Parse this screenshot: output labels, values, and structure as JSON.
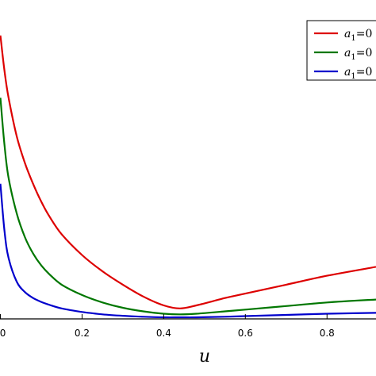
{
  "chart_data": {
    "type": "line",
    "xlabel": "u",
    "ylabel": "",
    "title": "",
    "xlim": [
      0.0,
      0.92
    ],
    "ylim": [
      0.0,
      1.0
    ],
    "x_ticks": [
      "0",
      "0.2",
      "0.4",
      "0.6",
      "0.8"
    ],
    "x_tick_values": [
      0.0,
      0.2,
      0.4,
      0.6,
      0.8
    ],
    "grid": false,
    "legend_position": "top-right",
    "series": [
      {
        "name": "a1=0",
        "color": "#dd0000",
        "x": [
          0.0,
          0.01,
          0.02,
          0.04,
          0.06,
          0.08,
          0.1,
          0.12,
          0.15,
          0.2,
          0.25,
          0.3,
          0.35,
          0.4,
          0.44,
          0.48,
          0.55,
          0.6,
          0.7,
          0.8,
          0.92
        ],
        "y": [
          0.95,
          0.83,
          0.74,
          0.61,
          0.52,
          0.45,
          0.39,
          0.34,
          0.28,
          0.21,
          0.155,
          0.11,
          0.07,
          0.04,
          0.03,
          0.04,
          0.065,
          0.08,
          0.11,
          0.14,
          0.17
        ]
      },
      {
        "name": "a1=0",
        "color": "#007700",
        "x": [
          0.0,
          0.01,
          0.02,
          0.04,
          0.06,
          0.08,
          0.1,
          0.12,
          0.15,
          0.2,
          0.25,
          0.3,
          0.35,
          0.4,
          0.44,
          0.48,
          0.55,
          0.6,
          0.7,
          0.8,
          0.92
        ],
        "y": [
          0.74,
          0.58,
          0.47,
          0.35,
          0.27,
          0.215,
          0.175,
          0.145,
          0.11,
          0.075,
          0.05,
          0.032,
          0.02,
          0.012,
          0.01,
          0.012,
          0.02,
          0.026,
          0.038,
          0.05,
          0.06
        ]
      },
      {
        "name": "a1=0",
        "color": "#0000cc",
        "x": [
          0.0,
          0.01,
          0.02,
          0.04,
          0.06,
          0.08,
          0.1,
          0.12,
          0.15,
          0.2,
          0.25,
          0.3,
          0.35,
          0.4,
          0.44,
          0.48,
          0.55,
          0.6,
          0.7,
          0.8,
          0.92
        ],
        "y": [
          0.45,
          0.29,
          0.2,
          0.12,
          0.085,
          0.065,
          0.052,
          0.042,
          0.03,
          0.018,
          0.01,
          0.005,
          0.002,
          0.0,
          0.0,
          0.0,
          0.002,
          0.004,
          0.008,
          0.012,
          0.015
        ]
      }
    ],
    "legend": {
      "entries": [
        {
          "symbol": "a",
          "subscript": "1",
          "rest": "=0"
        },
        {
          "symbol": "a",
          "subscript": "1",
          "rest": "=0"
        },
        {
          "symbol": "a",
          "subscript": "1",
          "rest": "=0"
        }
      ]
    }
  }
}
